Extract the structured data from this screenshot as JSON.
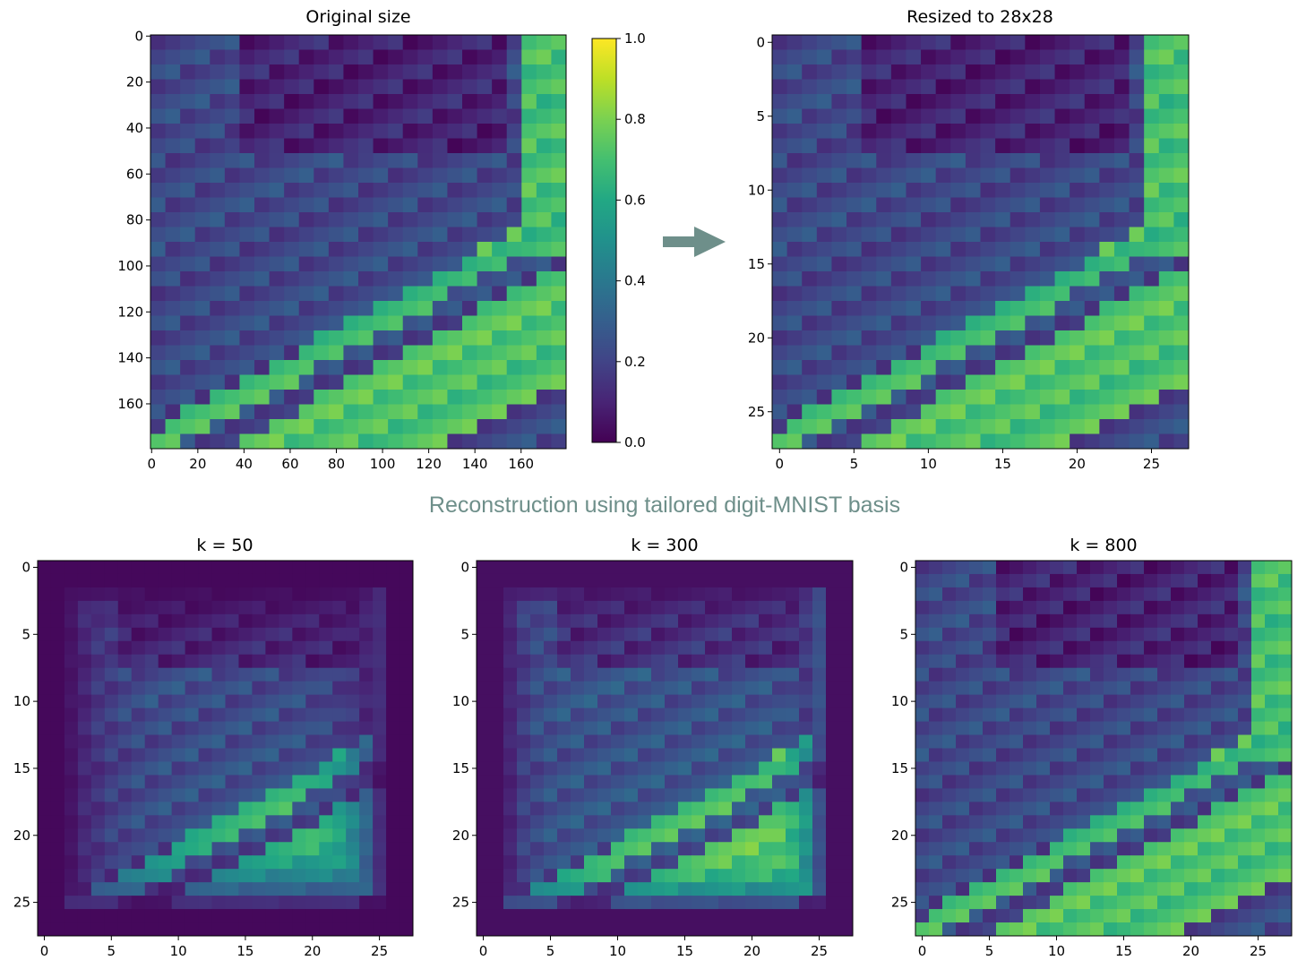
{
  "figure": {
    "caption": "Reconstruction using tailored digit-MNIST basis",
    "arrow_color": "#6e8f8a",
    "colormap": "viridis"
  },
  "chart_data": [
    {
      "id": "original",
      "type": "heatmap",
      "title": "Original size",
      "x_ticks": [
        0,
        20,
        40,
        60,
        80,
        100,
        120,
        140,
        160
      ],
      "y_ticks": [
        0,
        20,
        40,
        60,
        80,
        100,
        120,
        140,
        160
      ],
      "xlim": [
        -0.5,
        179.5
      ],
      "ylim": [
        179.5,
        -0.5
      ],
      "description": "satellite river image, values 0-1",
      "colorbar": {
        "ticks": [
          "0.0",
          "0.2",
          "0.4",
          "0.6",
          "0.8",
          "1.0"
        ],
        "range": [
          0,
          1
        ]
      }
    },
    {
      "id": "resized",
      "type": "heatmap",
      "title": "Resized to 28x28",
      "x_ticks": [
        0,
        5,
        10,
        15,
        20,
        25
      ],
      "y_ticks": [
        0,
        5,
        10,
        15,
        20,
        25
      ],
      "xlim": [
        -0.5,
        27.5
      ],
      "ylim": [
        27.5,
        -0.5
      ]
    },
    {
      "id": "k50",
      "type": "heatmap",
      "title": "k = 50",
      "x_ticks": [
        0,
        5,
        10,
        15,
        20,
        25
      ],
      "y_ticks": [
        0,
        5,
        10,
        15,
        20,
        25
      ],
      "xlim": [
        -0.5,
        27.5
      ],
      "ylim": [
        27.5,
        -0.5
      ]
    },
    {
      "id": "k300",
      "type": "heatmap",
      "title": "k = 300",
      "x_ticks": [
        0,
        5,
        10,
        15,
        20,
        25
      ],
      "y_ticks": [
        0,
        5,
        10,
        15,
        20,
        25
      ],
      "xlim": [
        -0.5,
        27.5
      ],
      "ylim": [
        27.5,
        -0.5
      ]
    },
    {
      "id": "k800",
      "type": "heatmap",
      "title": "k = 800",
      "x_ticks": [
        0,
        5,
        10,
        15,
        20,
        25
      ],
      "y_ticks": [
        0,
        5,
        10,
        15,
        20,
        25
      ],
      "xlim": [
        -0.5,
        27.5
      ],
      "ylim": [
        27.5,
        -0.5
      ]
    }
  ]
}
